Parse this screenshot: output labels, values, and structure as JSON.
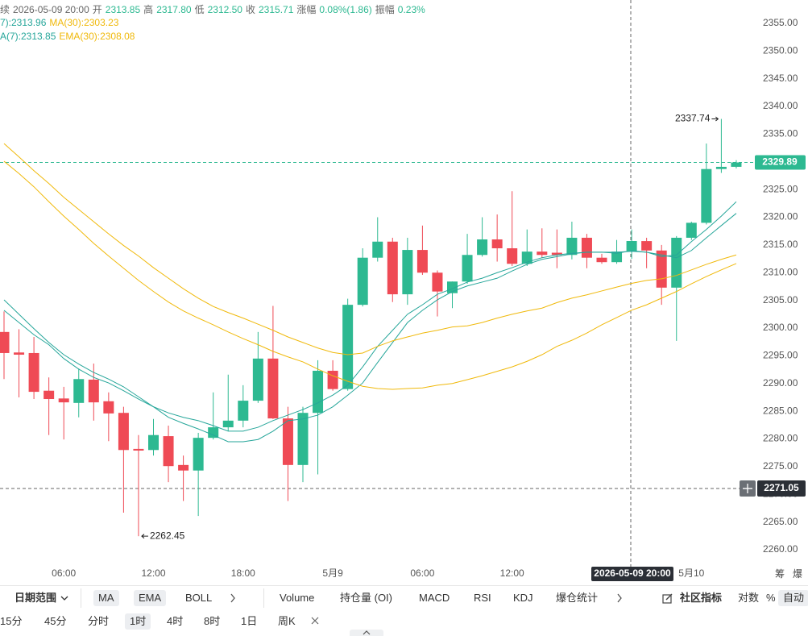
{
  "header": {
    "info": [
      "续",
      "2026-05-09 20:00",
      "开",
      "2313.85",
      "高",
      "2317.80",
      "低",
      "2312.50",
      "收",
      "2315.71",
      "涨幅",
      "0.08%(1.86)",
      "振幅",
      "0.23%"
    ],
    "legend_rows": [
      [
        {
          "text": "7):2313.96",
          "color": "#26a69a"
        },
        {
          "text": "MA(30):2303.23",
          "color": "#f0b90b"
        }
      ],
      [
        {
          "text": "A(7):2313.85",
          "color": "#26a69a"
        },
        {
          "text": "EMA(30):2308.08",
          "color": "#f0b90b"
        }
      ]
    ]
  },
  "chart_data": {
    "type": "candlestick",
    "categories": [
      null,
      null,
      null,
      null,
      "06:00",
      null,
      null,
      null,
      null,
      null,
      "12:00",
      null,
      null,
      null,
      null,
      null,
      "18:00",
      null,
      null,
      null,
      null,
      null,
      "5月9",
      null,
      null,
      null,
      null,
      null,
      "06:00",
      null,
      null,
      null,
      null,
      null,
      "12:00",
      null,
      null,
      null,
      null,
      null,
      null,
      null,
      null,
      null,
      null,
      null,
      "5月10",
      null,
      null,
      null
    ],
    "open": [
      2299.3,
      2295.6,
      2295.5,
      2288.7,
      2287.3,
      2286.5,
      2290.7,
      2286.8,
      2284.7,
      2278.2,
      2278.0,
      2280.5,
      2275.3,
      2274.3,
      2280.2,
      2282.1,
      2283.3,
      2286.9,
      2294.5,
      2283.7,
      2275.3,
      2284.7,
      2292.3,
      2289.0,
      2304.2,
      2312.7,
      2315.6,
      2306.1,
      2314.1,
      2310.0,
      2306.3,
      2308.4,
      2313.2,
      2316.0,
      2314.4,
      2311.6,
      2313.8,
      2313.6,
      2313.2,
      2316.3,
      2312.7,
      2311.9,
      2313.85,
      2315.7,
      2314.0,
      2307.3,
      2316.3,
      2319.0,
      2328.7,
      2329.1
    ],
    "high": [
      2303.0,
      2299.8,
      2298.4,
      2291.1,
      2289.4,
      2292.7,
      2293.6,
      2288.4,
      2285.8,
      2280.7,
      2283.6,
      2282.4,
      2277.0,
      2281.1,
      2288.4,
      2291.6,
      2289.7,
      2299.3,
      2304.0,
      2285.8,
      2285.8,
      2294.2,
      2294.2,
      2305.3,
      2314.4,
      2320.0,
      2316.3,
      2316.3,
      2318.5,
      2310.4,
      2308.4,
      2317.0,
      2320.0,
      2320.5,
      2324.7,
      2317.8,
      2318.0,
      2317.8,
      2319.2,
      2317.0,
      2313.4,
      2315.9,
      2317.8,
      2316.3,
      2315.0,
      2316.6,
      2319.2,
      2333.3,
      2337.74,
      2330.3
    ],
    "low": [
      2290.8,
      2287.5,
      2287.2,
      2280.7,
      2279.9,
      2283.9,
      2283.3,
      2279.6,
      2266.7,
      2262.45,
      2277.0,
      2272.2,
      2268.8,
      2266.1,
      2279.9,
      2281.4,
      2282.1,
      2286.5,
      2283.6,
      2268.8,
      2272.2,
      2273.6,
      2288.7,
      2288.7,
      2303.9,
      2312.0,
      2304.7,
      2304.2,
      2309.6,
      2302.1,
      2303.6,
      2308.0,
      2312.9,
      2312.0,
      2311.2,
      2311.2,
      2312.7,
      2310.8,
      2312.4,
      2310.8,
      2311.6,
      2311.6,
      2312.5,
      2310.8,
      2304.2,
      2297.7,
      2315.9,
      2318.7,
      2328.0,
      2328.8
    ],
    "close": [
      2295.5,
      2295.2,
      2288.5,
      2287.2,
      2286.6,
      2290.8,
      2286.6,
      2284.6,
      2278.0,
      2277.9,
      2280.7,
      2275.1,
      2274.3,
      2280.2,
      2282.1,
      2283.3,
      2286.9,
      2294.5,
      2283.7,
      2275.3,
      2284.7,
      2292.3,
      2289.0,
      2304.2,
      2312.7,
      2315.6,
      2306.1,
      2314.1,
      2310.0,
      2306.6,
      2308.4,
      2313.2,
      2316.0,
      2314.4,
      2311.6,
      2313.8,
      2313.2,
      2313.2,
      2316.3,
      2312.7,
      2311.9,
      2313.8,
      2315.71,
      2314.0,
      2307.3,
      2316.3,
      2319.0,
      2328.7,
      2329.1,
      2329.89
    ],
    "up_color": "#2db991",
    "down_color": "#ef4a55",
    "series": [
      {
        "color": "#26a69a",
        "values": [
          2305.1,
          2302.5,
          2299.9,
          2297.4,
          2295.2,
          2293.5,
          2292.0,
          2290.8,
          2289.4,
          2287.6,
          2285.8,
          2283.9,
          2282.8,
          2281.8,
          2280.7,
          2279.5,
          2279.5,
          2279.9,
          2281.4,
          2283.3,
          2283.6,
          2284.3,
          2285.8,
          2287.9,
          2290.1,
          2293.8,
          2297.4,
          2301.0,
          2303.2,
          2305.1,
          2306.6,
          2307.6,
          2308.3,
          2309.0,
          2310.3,
          2311.5,
          2312.4,
          2312.9,
          2313.4,
          2313.7,
          2313.7,
          2313.5,
          2313.96,
          2313.7,
          2313.2,
          2312.7,
          2314.0,
          2316.3,
          2318.5,
          2320.7
        ]
      },
      {
        "color": "#26a69a",
        "values": [
          2303.2,
          2301.0,
          2298.8,
          2297.0,
          2294.5,
          2292.6,
          2291.1,
          2290.1,
          2288.7,
          2287.2,
          2285.8,
          2284.7,
          2283.9,
          2283.3,
          2282.4,
          2281.4,
          2281.4,
          2282.1,
          2283.3,
          2284.3,
          2285.3,
          2286.5,
          2287.9,
          2289.7,
          2293.0,
          2296.7,
          2299.6,
          2302.5,
          2304.2,
          2306.1,
          2307.1,
          2308.3,
          2309.0,
          2310.0,
          2310.9,
          2311.9,
          2312.7,
          2313.2,
          2313.5,
          2313.7,
          2313.7,
          2313.7,
          2313.85,
          2313.7,
          2312.9,
          2313.2,
          2315.6,
          2317.8,
          2320.2,
          2322.8
        ]
      },
      {
        "color": "#f0b90b",
        "values": [
          2330.1,
          2327.9,
          2325.5,
          2322.8,
          2320.2,
          2317.8,
          2315.3,
          2313.0,
          2310.8,
          2308.6,
          2306.6,
          2304.7,
          2303.1,
          2301.8,
          2300.6,
          2299.3,
          2298.1,
          2297.0,
          2295.8,
          2294.8,
          2293.9,
          2292.6,
          2291.4,
          2290.4,
          2289.5,
          2289.1,
          2288.95,
          2289.1,
          2289.2,
          2289.7,
          2290.0,
          2290.7,
          2291.4,
          2292.2,
          2293.0,
          2294.0,
          2295.2,
          2296.7,
          2297.8,
          2299.1,
          2300.6,
          2301.9,
          2303.23,
          2304.2,
          2305.4,
          2306.6,
          2308.0,
          2309.3,
          2310.5,
          2311.65
        ]
      },
      {
        "color": "#f0b90b",
        "values": [
          2333.3,
          2330.9,
          2328.4,
          2326.1,
          2323.6,
          2321.4,
          2319.2,
          2317.0,
          2314.9,
          2313.0,
          2310.9,
          2309.0,
          2307.1,
          2305.4,
          2303.9,
          2302.8,
          2301.8,
          2300.7,
          2299.6,
          2298.4,
          2297.4,
          2296.4,
          2295.6,
          2295.2,
          2295.5,
          2296.7,
          2297.7,
          2298.4,
          2299.1,
          2299.6,
          2300.2,
          2300.4,
          2301.0,
          2301.8,
          2302.5,
          2303.1,
          2303.6,
          2304.6,
          2305.4,
          2306.0,
          2306.7,
          2307.4,
          2308.08,
          2308.6,
          2308.9,
          2309.5,
          2310.5,
          2311.5,
          2312.4,
          2313.2
        ]
      }
    ],
    "ylim": [
      2253.75,
      2359.2
    ],
    "yticks": [
      {
        "value": 2355,
        "label": "2355.00"
      },
      {
        "value": 2350,
        "label": "2350.00"
      },
      {
        "value": 2345,
        "label": "2345.00"
      },
      {
        "value": 2340,
        "label": "2340.00"
      },
      {
        "value": 2335,
        "label": "2335.00"
      },
      {
        "value": 2330,
        "label": "2330.00"
      },
      {
        "value": 2325,
        "label": "2325.00"
      },
      {
        "value": 2320,
        "label": "2320.00"
      },
      {
        "value": 2315,
        "label": "2315.00"
      },
      {
        "value": 2310,
        "label": "2310.00"
      },
      {
        "value": 2305,
        "label": "2305.00"
      },
      {
        "value": 2300,
        "label": "2300.00"
      },
      {
        "value": 2295,
        "label": "2295.00"
      },
      {
        "value": 2290,
        "label": "2290.00"
      },
      {
        "value": 2285,
        "label": "2285.00"
      },
      {
        "value": 2280,
        "label": "2280.00"
      },
      {
        "value": 2275,
        "label": "2275.00"
      },
      {
        "value": 2270,
        "label": "2270.00"
      },
      {
        "value": 2265,
        "label": "2265.00"
      },
      {
        "value": 2260,
        "label": "2260.00"
      }
    ],
    "grid": false,
    "last_price": 2329.89,
    "crosshair_price": 2271.05,
    "crosshair_time": "2026-05-09 20:00",
    "high_label": 2337.74,
    "low_label": 2262.45
  },
  "toolbar": {
    "date_range": "日期范围",
    "overlays": [
      {
        "text": "MA",
        "selected": true
      },
      {
        "text": "EMA",
        "selected": true
      },
      {
        "text": "BOLL",
        "selected": false
      }
    ],
    "indicators": [
      "Volume",
      "持仓量 (OI)",
      "MACD",
      "RSI",
      "KDJ",
      "爆仓统计"
    ],
    "community": "社区指标",
    "scale": [
      {
        "text": "对数",
        "selected": false
      },
      {
        "text": "%",
        "selected": false
      },
      {
        "text": "自动",
        "selected": true
      }
    ],
    "intervals": [
      {
        "text": "15分",
        "selected": false
      },
      {
        "text": "45分",
        "selected": false
      },
      {
        "text": "分时",
        "selected": false
      },
      {
        "text": "1时",
        "selected": true
      },
      {
        "text": "4时",
        "selected": false
      },
      {
        "text": "8时",
        "selected": false
      },
      {
        "text": "1日",
        "selected": false
      },
      {
        "text": "周K",
        "selected": false
      }
    ],
    "corner": [
      "筹",
      "爆"
    ]
  }
}
